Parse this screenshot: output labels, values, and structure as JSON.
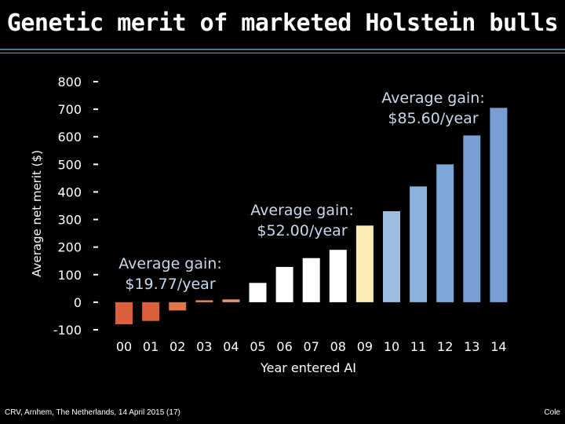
{
  "slide": {
    "title": "Genetic merit of marketed Holstein bulls",
    "footer_left": "CRV, Arnhem, The Netherlands, 14 April 2015 (17)",
    "footer_right": "Cole"
  },
  "chart_data": {
    "type": "bar",
    "title": "Genetic merit of marketed Holstein bulls",
    "xlabel": "Year entered AI",
    "ylabel": "Average net merit ($)",
    "ylim": [
      -100,
      800
    ],
    "yticks": [
      -100,
      0,
      100,
      200,
      300,
      400,
      500,
      600,
      700,
      800
    ],
    "categories": [
      "00",
      "01",
      "02",
      "03",
      "04",
      "05",
      "06",
      "07",
      "08",
      "09",
      "10",
      "11",
      "12",
      "13",
      "14"
    ],
    "values": [
      -80,
      -68,
      -30,
      7,
      10,
      70,
      128,
      160,
      190,
      278,
      330,
      420,
      500,
      605,
      705
    ],
    "bar_colors": [
      "#d9603a",
      "#d9603a",
      "#e0754a",
      "#e8875a",
      "#ec9466",
      "#ffffff",
      "#ffffff",
      "#ffffff",
      "#ffffff",
      "#fbe9b6",
      "#9dbde0",
      "#8bb2dc",
      "#7ea8d8",
      "#779fd4",
      "#779fd4"
    ],
    "grid": false,
    "annotations": [
      {
        "line1": "Average gain:",
        "line2": "$19.77/year"
      },
      {
        "line1": "Average gain:",
        "line2": "$52.00/year"
      },
      {
        "line1": "Average gain:",
        "line2": "$85.60/year"
      }
    ],
    "colors": {
      "background": "#000000",
      "text": "#ffffff",
      "annotation": "#c9d9ec",
      "axis": "#ffffff"
    }
  }
}
